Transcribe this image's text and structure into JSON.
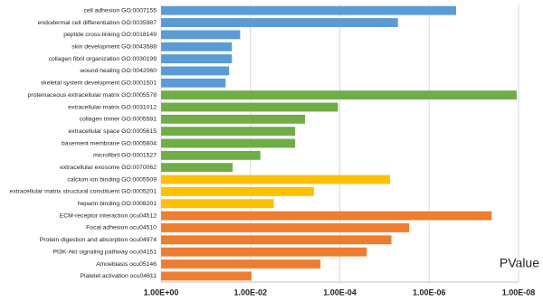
{
  "chart_data": {
    "type": "bar",
    "orientation": "horizontal",
    "x_scale": "log",
    "x_label": "PValue",
    "categories": [
      "cell adhesion GO:0007155",
      "endodermal cell differentiation GO:0035987",
      "peptide cross-linking GO:0018149",
      "skin development GO:0043588",
      "collagen fibril organization GO:0030199",
      "wound healing GO:0042060",
      "skeletal system development GO:0001501",
      "proteinaceous extracellular matrix GO:0005578",
      "extracellular matrix GO:0031012",
      "collagen trimer GO:0005581",
      "extracellular space GO:0005615",
      "basement membrane GO:0005604",
      "microfibril GO:0001527",
      "extracellular exosome GO:0070062",
      "calcium ion binding GO:0005509",
      "extracellular matrix structural constituent GO:0005201",
      "heparin binding GO:0008201",
      "ECM-receptor interaction ocu04512",
      "Focal adhesion ocu04510",
      "Protein digestion and absorption ocu04974",
      "PI3K-Akt signaling pathway ocu04151",
      "Amoebiasis ocu05146",
      "Platelet activation ocu04611"
    ],
    "values": [
      2.5e-07,
      5e-06,
      0.017,
      0.026,
      0.026,
      0.03,
      0.036,
      1.1e-08,
      0.00011,
      0.0006,
      0.001,
      0.001,
      0.006,
      0.025,
      7.5e-06,
      0.00038,
      0.003,
      4e-08,
      2.8e-06,
      7e-06,
      2.5e-05,
      0.00027,
      0.0095
    ],
    "colors": [
      "#5b9bd5",
      "#5b9bd5",
      "#5b9bd5",
      "#5b9bd5",
      "#5b9bd5",
      "#5b9bd5",
      "#5b9bd5",
      "#70ad47",
      "#70ad47",
      "#70ad47",
      "#70ad47",
      "#70ad47",
      "#70ad47",
      "#70ad47",
      "#ffc000",
      "#ffc000",
      "#ffc000",
      "#ed7d31",
      "#ed7d31",
      "#ed7d31",
      "#ed7d31",
      "#ed7d31",
      "#ed7d31"
    ],
    "xlim": [
      1,
      1e-08
    ],
    "xticks": [
      {
        "value": 1,
        "label": "1.00E+00"
      },
      {
        "value": 0.01,
        "label": "1.00E-02"
      },
      {
        "value": 0.0001,
        "label": "1.00E-04"
      },
      {
        "value": 1e-06,
        "label": "1.00E-06"
      },
      {
        "value": 1e-08,
        "label": "1.00E-08"
      }
    ],
    "grid": true
  }
}
